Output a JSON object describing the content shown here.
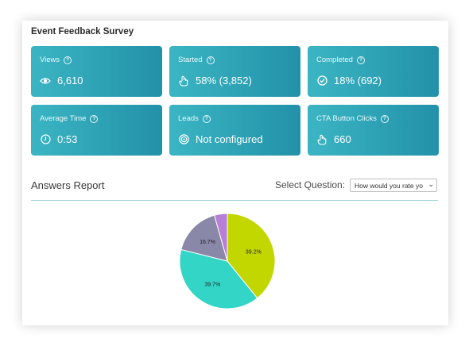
{
  "survey": {
    "title": "Event Feedback Survey"
  },
  "cards": [
    {
      "label": "Views",
      "value": "6,610",
      "icon": "eye-icon"
    },
    {
      "label": "Started",
      "value": "58% (3,852)",
      "icon": "hand-icon"
    },
    {
      "label": "Completed",
      "value": "18% (692)",
      "icon": "check-circle-icon"
    },
    {
      "label": "Average Time",
      "value": "0:53",
      "icon": "clock-icon"
    },
    {
      "label": "Leads",
      "value": "Not configured",
      "icon": "target-icon"
    },
    {
      "label": "CTA Button Clicks",
      "value": "660",
      "icon": "hand-icon"
    }
  ],
  "help_glyph": "?",
  "answers": {
    "title": "Answers Report",
    "select_label": "Select Question:",
    "select_value": "How would you rate yo"
  },
  "colors": {
    "card_start": "#3bb5c3",
    "card_end": "#2291a9",
    "divider": "#9fd4df"
  },
  "chart_data": {
    "type": "pie",
    "slices": [
      {
        "value": 39.2,
        "label": "39.2%",
        "color": "#c2d600"
      },
      {
        "value": 39.7,
        "label": "39.7%",
        "color": "#33d6c6"
      },
      {
        "value": 16.7,
        "label": "16.7%",
        "color": "#8a88a8"
      },
      {
        "value": 4.4,
        "label": "",
        "color": "#b77fd6"
      }
    ]
  }
}
